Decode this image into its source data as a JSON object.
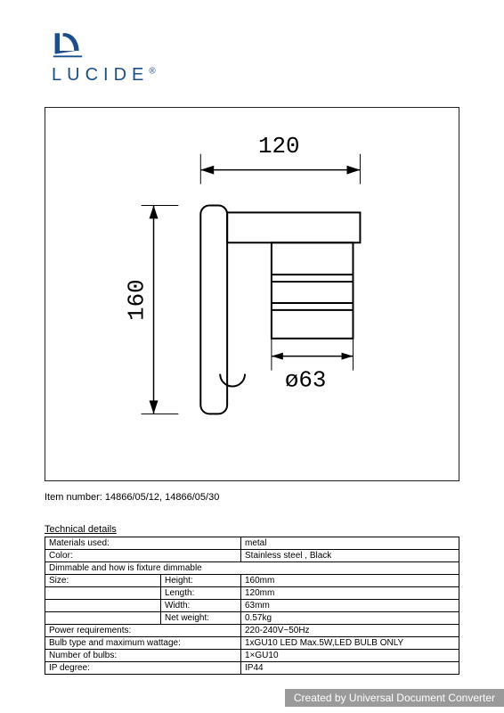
{
  "logo": {
    "text": "LUCIDE",
    "reg": "®"
  },
  "diagram": {
    "dim_width": "120",
    "dim_height": "160",
    "dim_diameter": "ø63",
    "stroke": "#000000",
    "fill_bg": "#ffffff"
  },
  "item_number_label": "Item number: 14866/05/12, 14866/05/30",
  "technical_title": "Technical details",
  "specs": {
    "rows": [
      {
        "label": "Materials used:",
        "sub": "",
        "value": "metal"
      },
      {
        "label": "Color:",
        "sub": "",
        "value": "Stainless steel , Black"
      },
      {
        "label": "Dimmable and how is fixture dimmable",
        "sub": "",
        "value": "",
        "fullspan": true
      },
      {
        "label": "Size:",
        "sub": "Height:",
        "value": "160mm"
      },
      {
        "label": "",
        "sub": "Length:",
        "value": "120mm"
      },
      {
        "label": "",
        "sub": "Width:",
        "value": "63mm"
      },
      {
        "label": "",
        "sub": "Net weight:",
        "value": "0.57kg"
      },
      {
        "label": "Power requirements:",
        "sub": "",
        "value": "220-240V~50Hz"
      },
      {
        "label": "Bulb type and maximum wattage:",
        "sub": "",
        "value": "1xGU10 LED Max.5W,LED BULB ONLY"
      },
      {
        "label": "Number of bulbs:",
        "sub": "",
        "value": "1×GU10"
      },
      {
        "label": "IP degree:",
        "sub": "",
        "value": "IP44"
      }
    ]
  },
  "footer": "Created by Universal Document Converter"
}
